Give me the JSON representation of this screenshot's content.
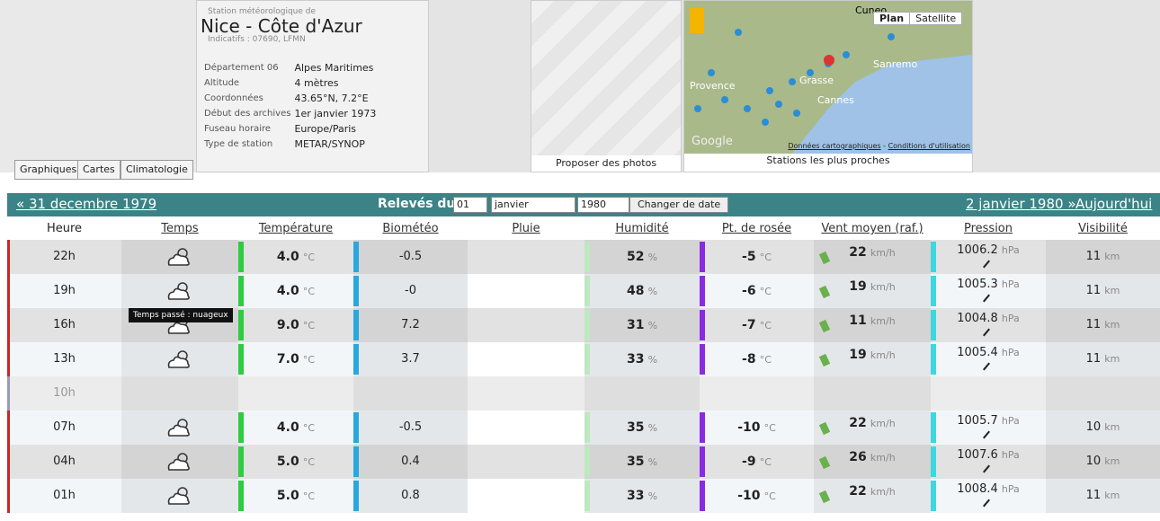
{
  "station": {
    "label": "Station météorologique de",
    "name": "Nice - Côte d'Azur",
    "codes": "Indicatifs : 07690, LFMN",
    "info": [
      [
        "Département 06",
        "Alpes Maritimes"
      ],
      [
        "Altitude",
        "4 mètres"
      ],
      [
        "Coordonnées",
        "43.65°N, 7.2°E"
      ],
      [
        "Début des archives",
        "1er janvier 1973"
      ],
      [
        "Fuseau horaire",
        "Europe/Paris"
      ],
      [
        "Type de station",
        "METAR/SYNOP"
      ]
    ]
  },
  "tabs": [
    "Graphiques",
    "Cartes",
    "Climatologie"
  ],
  "photos": "Proposer des photos",
  "map": {
    "buttons": [
      "Plan",
      "Satellite"
    ],
    "places": [
      "Cuneo",
      "Sanremo",
      "Provence",
      "Grasse",
      "Cannes",
      "Google"
    ],
    "links": [
      "Données cartographiques",
      "Conditions d'utilisation"
    ],
    "separator": "-",
    "caption": "Stations les plus proches"
  },
  "nav": {
    "prev": "« 31 decembre 1979",
    "label": "Relevés du",
    "day": "01",
    "month": "janvier",
    "year": "1980",
    "button": "Changer de date",
    "next": "2 janvier 1980 »",
    "today": "Aujourd'hui »"
  },
  "headers": [
    "Heure",
    "Temps",
    "Température",
    "Biométéo",
    "Pluie",
    "Humidité",
    "Pt. de rosée",
    "Vent moyen (raf.)",
    "Pression",
    "Visibilité"
  ],
  "units": {
    "temp": "°C",
    "hum": "%",
    "dew": "°C",
    "wind": "km/h",
    "pres": "hPa",
    "vis": "km"
  },
  "tooltip": "Temps passé : nuageux",
  "rows": [
    {
      "hour": "22h",
      "temp": "4.0",
      "bio": "-0.5",
      "hum": "52",
      "dew": "-5",
      "wind": "22",
      "pres": "1006.2",
      "vis": "11"
    },
    {
      "hour": "19h",
      "temp": "4.0",
      "bio": "-0",
      "hum": "48",
      "dew": "-6",
      "wind": "19",
      "pres": "1005.3",
      "vis": "11"
    },
    {
      "hour": "16h",
      "temp": "9.0",
      "bio": "7.2",
      "hum": "31",
      "dew": "-7",
      "wind": "11",
      "pres": "1004.8",
      "vis": "11"
    },
    {
      "hour": "13h",
      "temp": "7.0",
      "bio": "3.7",
      "hum": "33",
      "dew": "-8",
      "wind": "19",
      "pres": "1005.4",
      "vis": "11"
    },
    {
      "hour": "10h"
    },
    {
      "hour": "07h",
      "temp": "4.0",
      "bio": "-0.5",
      "hum": "35",
      "dew": "-10",
      "wind": "22",
      "pres": "1005.7",
      "vis": "10"
    },
    {
      "hour": "04h",
      "temp": "5.0",
      "bio": "0.4",
      "hum": "35",
      "dew": "-9",
      "wind": "26",
      "pres": "1007.6",
      "vis": "10"
    },
    {
      "hour": "01h",
      "temp": "5.0",
      "bio": "0.8",
      "hum": "33",
      "dew": "-10",
      "wind": "22",
      "pres": "1008.4",
      "vis": "11"
    }
  ]
}
